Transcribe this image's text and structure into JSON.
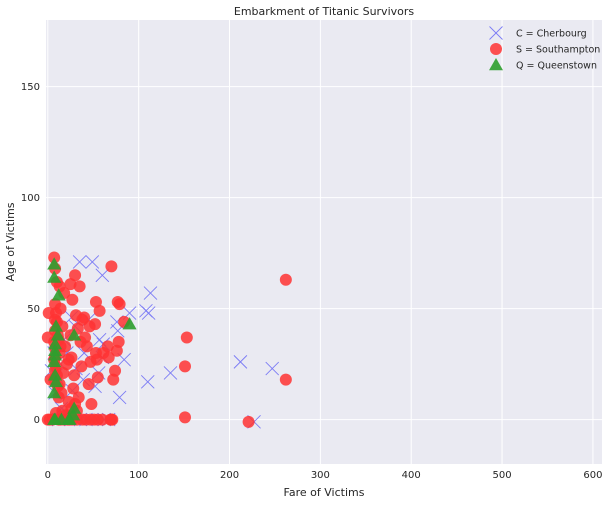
{
  "chart_data": {
    "type": "scatter",
    "title": "Embarkment of Titanic Survivors",
    "xlabel": "Fare of Victims",
    "ylabel": "Age of Victims",
    "xlim": [
      -2,
      610
    ],
    "ylim": [
      -20,
      180
    ],
    "xticks": [
      0,
      100,
      200,
      300,
      400,
      500,
      600
    ],
    "yticks": [
      0,
      50,
      100,
      150
    ],
    "grid": true,
    "background": "#EAEAF2",
    "grid_color": "#FFFFFF",
    "legend_position": "top-right",
    "series": [
      {
        "name": "C = Cherbourg",
        "marker": "x",
        "color": "#7B7BF5",
        "points": [
          [
            35,
            71
          ],
          [
            49,
            71
          ],
          [
            60,
            65
          ],
          [
            113,
            57
          ],
          [
            108,
            49
          ],
          [
            111,
            48
          ],
          [
            84,
            27
          ],
          [
            57,
            36
          ],
          [
            61,
            34
          ],
          [
            77,
            40
          ],
          [
            40,
            30
          ],
          [
            31,
            23
          ],
          [
            27,
            13
          ],
          [
            15,
            5
          ],
          [
            56,
            21
          ],
          [
            135,
            21
          ],
          [
            110,
            17
          ],
          [
            212,
            26
          ],
          [
            247,
            23
          ],
          [
            227,
            -1
          ],
          [
            30,
            42
          ],
          [
            45,
            45
          ],
          [
            21,
            30
          ],
          [
            14,
            25
          ],
          [
            9,
            20
          ],
          [
            7,
            30
          ],
          [
            4,
            22
          ],
          [
            76,
            44
          ],
          [
            90,
            48
          ],
          [
            60,
            28
          ],
          [
            26,
            46
          ],
          [
            39,
            18
          ],
          [
            52,
            15
          ],
          [
            8,
            12
          ],
          [
            79,
            10
          ],
          [
            18,
            36
          ],
          [
            67,
            0
          ],
          [
            36,
            0
          ],
          [
            21,
            3
          ],
          [
            12,
            0
          ],
          [
            42,
            0
          ],
          [
            62,
            0
          ]
        ]
      },
      {
        "name": "S = Southampton",
        "marker": "o",
        "color": "#FF3333",
        "points": [
          [
            7,
            73
          ],
          [
            8,
            68
          ],
          [
            10,
            62
          ],
          [
            13,
            60
          ],
          [
            30,
            65
          ],
          [
            25,
            61
          ],
          [
            18,
            57
          ],
          [
            35,
            60
          ],
          [
            27,
            54
          ],
          [
            14,
            50
          ],
          [
            9,
            48
          ],
          [
            8,
            45
          ],
          [
            16,
            42
          ],
          [
            11,
            38
          ],
          [
            7,
            35
          ],
          [
            8,
            32
          ],
          [
            13,
            30
          ],
          [
            26,
            28
          ],
          [
            21,
            25
          ],
          [
            8,
            22
          ],
          [
            7,
            18
          ],
          [
            29,
            20
          ],
          [
            13,
            16
          ],
          [
            15,
            12
          ],
          [
            23,
            8
          ],
          [
            26,
            5
          ],
          [
            7,
            27
          ],
          [
            8,
            40
          ],
          [
            10,
            44
          ],
          [
            12,
            36
          ],
          [
            14,
            33
          ],
          [
            8,
            28
          ],
          [
            9,
            24
          ],
          [
            10,
            20
          ],
          [
            11,
            15
          ],
          [
            12,
            10
          ],
          [
            8,
            52
          ],
          [
            31,
            47
          ],
          [
            53,
            53
          ],
          [
            57,
            49
          ],
          [
            52,
            43
          ],
          [
            46,
            42
          ],
          [
            40,
            46
          ],
          [
            41,
            37
          ],
          [
            53,
            30
          ],
          [
            61,
            30
          ],
          [
            66,
            33
          ],
          [
            54,
            27
          ],
          [
            67,
            28
          ],
          [
            70,
            69
          ],
          [
            77,
            53
          ],
          [
            79,
            52
          ],
          [
            84,
            44
          ],
          [
            78,
            35
          ],
          [
            76,
            31
          ],
          [
            74,
            22
          ],
          [
            72,
            18
          ],
          [
            55,
            19
          ],
          [
            47,
            26
          ],
          [
            37,
            24
          ],
          [
            45,
            16
          ],
          [
            48,
            7
          ],
          [
            32,
            4
          ],
          [
            20,
            2
          ],
          [
            3,
            18
          ],
          [
            1,
            48
          ],
          [
            0,
            37
          ],
          [
            2,
            0
          ],
          [
            0,
            0
          ],
          [
            5,
            0
          ],
          [
            12,
            0
          ],
          [
            18,
            0
          ],
          [
            22,
            0
          ],
          [
            27,
            0
          ],
          [
            32,
            0
          ],
          [
            38,
            0
          ],
          [
            42,
            0
          ],
          [
            47,
            0
          ],
          [
            51,
            0
          ],
          [
            55,
            0
          ],
          [
            60,
            0
          ],
          [
            69,
            0
          ],
          [
            70,
            0
          ],
          [
            71,
            0
          ],
          [
            153,
            37
          ],
          [
            151,
            24
          ],
          [
            151,
            1
          ],
          [
            221,
            -1
          ],
          [
            262,
            63
          ],
          [
            262,
            18
          ],
          [
            25,
            38
          ],
          [
            33,
            41
          ],
          [
            38,
            45
          ],
          [
            19,
            33
          ],
          [
            23,
            27
          ],
          [
            17,
            21
          ],
          [
            28,
            14
          ],
          [
            34,
            10
          ],
          [
            30,
            7
          ],
          [
            16,
            4
          ],
          [
            14,
            0
          ],
          [
            24,
            0
          ],
          [
            9,
            3
          ],
          [
            43,
            33
          ],
          [
            36,
            35
          ]
        ]
      },
      {
        "name": "Q = Queenstown",
        "marker": "^",
        "color": "#2E9E2E",
        "points": [
          [
            7,
            70
          ],
          [
            7,
            64
          ],
          [
            12,
            56
          ],
          [
            9,
            42
          ],
          [
            11,
            38
          ],
          [
            8,
            34
          ],
          [
            8,
            31
          ],
          [
            8,
            29
          ],
          [
            7,
            26
          ],
          [
            8,
            20
          ],
          [
            9,
            17
          ],
          [
            7,
            12
          ],
          [
            29,
            5
          ],
          [
            28,
            2
          ],
          [
            29,
            38
          ],
          [
            90,
            43
          ],
          [
            7,
            0
          ],
          [
            8,
            0
          ],
          [
            15,
            0
          ],
          [
            23,
            0
          ],
          [
            24,
            0
          ]
        ]
      }
    ]
  }
}
